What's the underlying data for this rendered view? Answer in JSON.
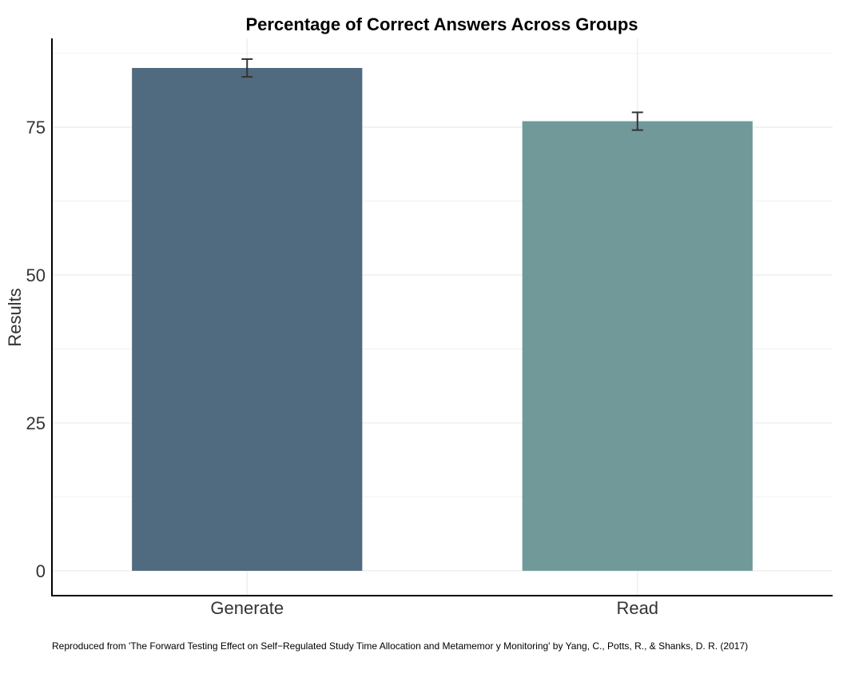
{
  "chart_data": {
    "type": "bar",
    "title": "Percentage of Correct Answers Across Groups",
    "xlabel": "",
    "ylabel": "Results",
    "categories": [
      "Generate",
      "Read"
    ],
    "values": [
      85,
      76
    ],
    "error_bars": [
      {
        "low": 83.5,
        "high": 86.5
      },
      {
        "low": 74.5,
        "high": 77.5
      }
    ],
    "colors": [
      "#506b80",
      "#72999a"
    ],
    "ylim": [
      -4.2,
      90
    ],
    "yticks": [
      0,
      25,
      50,
      75
    ],
    "ytick_labels": [
      "0",
      "25",
      "50",
      "75"
    ],
    "grid": true,
    "legend": "none",
    "caption": "Reproduced from 'The Forward Testing Effect on Self−Regulated Study Time Allocation and Metamemor y Monitoring' by Yang, C., Potts, R., & Shanks, D. R. (2017)"
  }
}
